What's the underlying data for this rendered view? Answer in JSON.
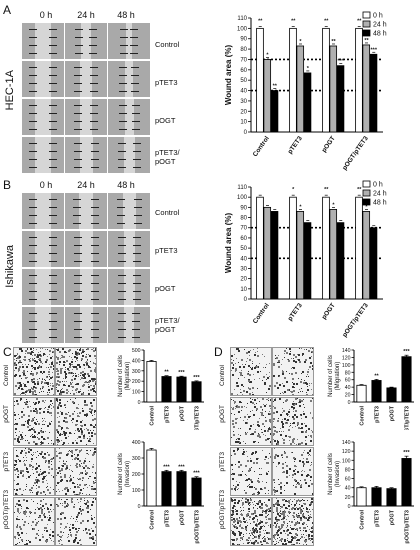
{
  "panels": {
    "A": {
      "letter": "A",
      "cell_line": "HEC-1A",
      "times": [
        "0 h",
        "24 h",
        "48 h"
      ],
      "rows": [
        "Control",
        "pTET3",
        "pOGT",
        "pTET3/\npOGT"
      ]
    },
    "B": {
      "letter": "B",
      "cell_line": "Ishikawa",
      "times": [
        "0 h",
        "24 h",
        "48 h"
      ],
      "rows": [
        "Control",
        "pTET3",
        "pOGT",
        "pTET3/\npOGT"
      ]
    },
    "C": {
      "letter": "C",
      "rows": [
        "Control",
        "pOGT",
        "pTET3",
        "pOGT/pTET3"
      ]
    },
    "D": {
      "letter": "D",
      "rows": [
        "Control",
        "pOGT",
        "pTET3",
        "pOGT/pTET3"
      ]
    }
  },
  "chart_data": [
    {
      "id": "A",
      "type": "bar",
      "categories": [
        "Control",
        "pTET3",
        "pOGT",
        "pOGT/pTET3"
      ],
      "series": [
        {
          "name": "0 h",
          "values": [
            100,
            100,
            100,
            100
          ],
          "color": "#ffffff"
        },
        {
          "name": "24 h",
          "values": [
            70,
            83,
            83,
            84
          ],
          "color": "#b0b0b0"
        },
        {
          "name": "48 h",
          "values": [
            40,
            57,
            64,
            75
          ],
          "color": "#000000"
        }
      ],
      "ylabel": "Wound area (%)",
      "ylim": [
        0,
        110
      ],
      "yticks": [
        0,
        10,
        20,
        30,
        40,
        50,
        60,
        70,
        80,
        90,
        100,
        110
      ],
      "reference_lines": [
        70,
        40
      ],
      "legend": "top-right",
      "annotations": {
        "0": [
          "**",
          "*",
          "**"
        ],
        "1": [
          "**",
          "*",
          "*"
        ],
        "2": [
          "**",
          "**",
          "***"
        ],
        "3": [
          "**",
          "**",
          "***"
        ]
      }
    },
    {
      "id": "B",
      "type": "bar",
      "categories": [
        "Control",
        "pTET3",
        "pOGT",
        "pOGT/pTET3"
      ],
      "series": [
        {
          "name": "0 h",
          "values": [
            100,
            100,
            100,
            100
          ],
          "color": "#ffffff"
        },
        {
          "name": "24 h",
          "values": [
            90,
            86,
            88,
            86
          ],
          "color": "#b0b0b0"
        },
        {
          "name": "48 h",
          "values": [
            86,
            75,
            75,
            70
          ],
          "color": "#000000"
        }
      ],
      "ylabel": "Wound area (%)",
      "ylim": [
        0,
        110
      ],
      "yticks": [
        0,
        10,
        20,
        30,
        40,
        50,
        60,
        70,
        80,
        90,
        100,
        110
      ],
      "reference_lines": [
        70,
        40
      ],
      "legend": "top-right",
      "annotations": {
        "1": [
          "*",
          "*",
          ""
        ],
        "2": [
          "**",
          "*",
          ""
        ],
        "3": [
          "**",
          "*",
          ""
        ]
      }
    },
    {
      "id": "C1",
      "type": "bar",
      "categories": [
        "Control",
        "pTET3",
        "pOGT",
        "pOGT/pTET3"
      ],
      "values": [
        390,
        245,
        240,
        195
      ],
      "errors": [
        10,
        8,
        8,
        8
      ],
      "colors": [
        "#ffffff",
        "#000000",
        "#000000",
        "#000000"
      ],
      "stars": [
        "",
        "**",
        "***",
        "***"
      ],
      "ylabel": "Number of cells\n(Migration)",
      "ylim": [
        0,
        500
      ],
      "yticks": [
        0,
        100,
        200,
        300,
        400,
        500
      ]
    },
    {
      "id": "C2",
      "type": "bar",
      "categories": [
        "Control",
        "pTET3",
        "pOGT",
        "pOGT/pTET3"
      ],
      "values": [
        350,
        215,
        215,
        175
      ],
      "errors": [
        10,
        8,
        8,
        8
      ],
      "colors": [
        "#ffffff",
        "#000000",
        "#000000",
        "#000000"
      ],
      "stars": [
        "",
        "***",
        "***",
        "***"
      ],
      "ylabel": "Number of cells\n(Invasion)",
      "ylim": [
        0,
        400
      ],
      "yticks": [
        0,
        100,
        200,
        300,
        400
      ]
    },
    {
      "id": "D1",
      "type": "bar",
      "categories": [
        "Control",
        "pTET3",
        "pOGT",
        "pOGT/pTET3"
      ],
      "values": [
        45,
        58,
        38,
        122
      ],
      "errors": [
        2,
        3,
        2,
        4
      ],
      "colors": [
        "#ffffff",
        "#000000",
        "#000000",
        "#000000"
      ],
      "stars": [
        "",
        "**",
        "",
        "***"
      ],
      "ylabel": "Number of cells\n(Migration)",
      "ylim": [
        0,
        140
      ],
      "yticks": [
        0,
        20,
        40,
        60,
        80,
        100,
        120,
        140
      ]
    },
    {
      "id": "D2",
      "type": "bar",
      "categories": [
        "Control",
        "pTET3",
        "pOGT",
        "pOGT/pTET3"
      ],
      "values": [
        40,
        40,
        38,
        104
      ],
      "errors": [
        2,
        3,
        2,
        5
      ],
      "colors": [
        "#ffffff",
        "#000000",
        "#000000",
        "#000000"
      ],
      "stars": [
        "",
        "",
        "",
        "***"
      ],
      "ylabel": "Number of cells\n(Invasion)",
      "ylim": [
        0,
        140
      ],
      "yticks": [
        0,
        20,
        40,
        60,
        80,
        100,
        120,
        140
      ]
    }
  ]
}
